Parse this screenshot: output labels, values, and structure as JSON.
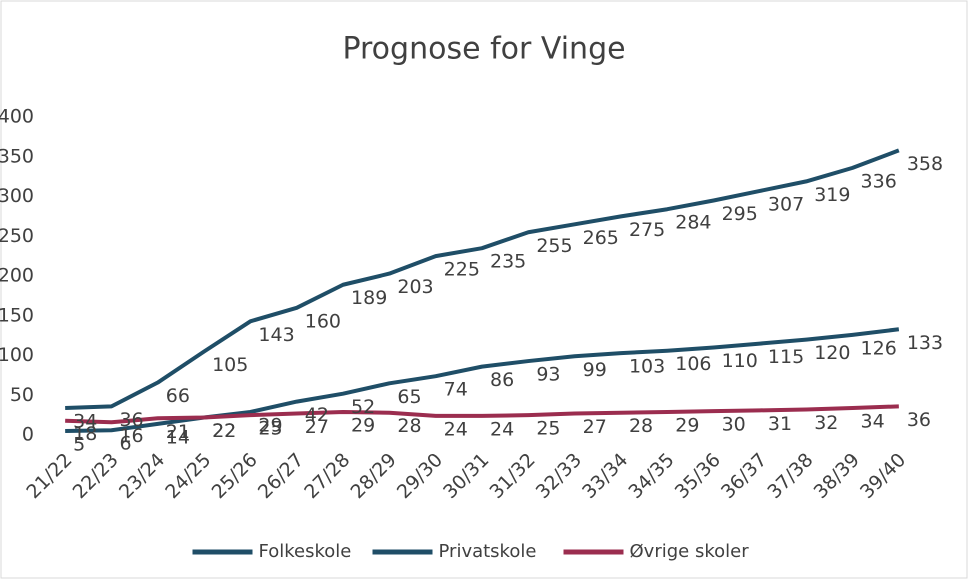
{
  "chart_data": {
    "type": "line",
    "title": "Prognose for Vinge",
    "categories": [
      "21/22",
      "22/23",
      "23/24",
      "24/25",
      "25/26",
      "26/27",
      "27/28",
      "28/29",
      "29/30",
      "30/31",
      "31/32",
      "32/33",
      "33/34",
      "34/35",
      "35/36",
      "36/37",
      "37/38",
      "38/39",
      "39/40"
    ],
    "series": [
      {
        "name": "Folkeskole",
        "color": "#1f4e67",
        "values": [
          34,
          36,
          66,
          105,
          143,
          160,
          189,
          203,
          225,
          235,
          255,
          265,
          275,
          284,
          295,
          307,
          319,
          336,
          358
        ]
      },
      {
        "name": "Privatskole",
        "color": "#1f4e67",
        "values": [
          5,
          6,
          14,
          22,
          29,
          42,
          52,
          65,
          74,
          86,
          93,
          99,
          103,
          106,
          110,
          115,
          120,
          126,
          133
        ]
      },
      {
        "name": "Øvrige skoler",
        "color": "#9b2d4f",
        "values": [
          18,
          16,
          21,
          22,
          25,
          27,
          29,
          28,
          24,
          24,
          25,
          27,
          28,
          29,
          30,
          31,
          32,
          34,
          36
        ]
      }
    ],
    "ylim": [
      0,
      400
    ],
    "yticks": [
      0,
      50,
      100,
      150,
      200,
      250,
      300,
      350,
      400
    ],
    "grid": false,
    "legend": "bottom"
  }
}
